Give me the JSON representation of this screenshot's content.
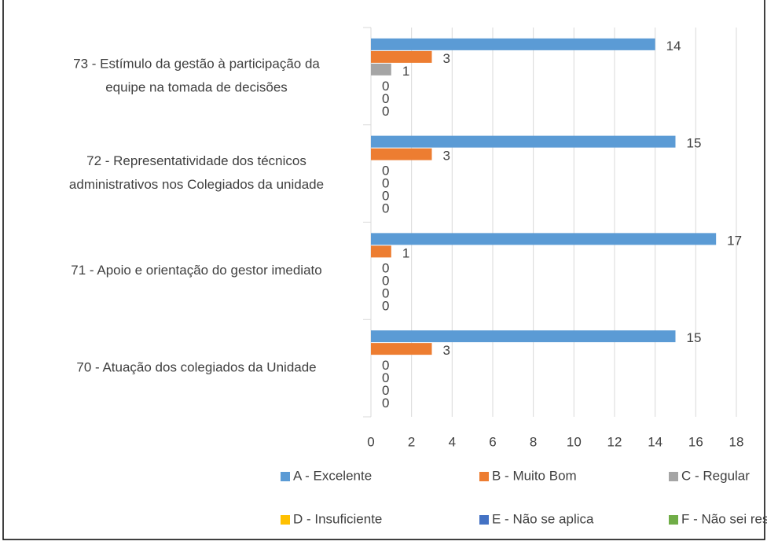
{
  "chart_data": {
    "type": "bar",
    "orientation": "horizontal",
    "categories": [
      [
        "70 - Atuação dos colegiados da Unidade"
      ],
      [
        "71 - Apoio e orientação do gestor imediato"
      ],
      [
        "72 - Representatividade dos técnicos",
        "administrativos nos Colegiados da unidade"
      ],
      [
        "73 - Estímulo da gestão à participação da",
        "equipe na tomada de decisões"
      ]
    ],
    "series": [
      {
        "name": "A - Excelente",
        "color": "#5b9bd5",
        "values": [
          15,
          17,
          15,
          14
        ]
      },
      {
        "name": "B - Muito Bom",
        "color": "#ed7d31",
        "values": [
          3,
          1,
          3,
          3
        ]
      },
      {
        "name": "C - Regular",
        "color": "#a5a5a5",
        "values": [
          0,
          0,
          0,
          1
        ]
      },
      {
        "name": "D - Insuficiente",
        "color": "#ffc000",
        "values": [
          0,
          0,
          0,
          0
        ]
      },
      {
        "name": "E - Não se aplica",
        "color": "#4472c4",
        "values": [
          0,
          0,
          0,
          0
        ]
      },
      {
        "name": "F - Não sei responder",
        "color": "#70ad47",
        "values": [
          0,
          0,
          0,
          0
        ]
      }
    ],
    "xlim": [
      0,
      18
    ],
    "xticks": [
      0,
      2,
      4,
      6,
      8,
      10,
      12,
      14,
      16,
      18
    ],
    "grid": true,
    "legend": "bottom"
  }
}
